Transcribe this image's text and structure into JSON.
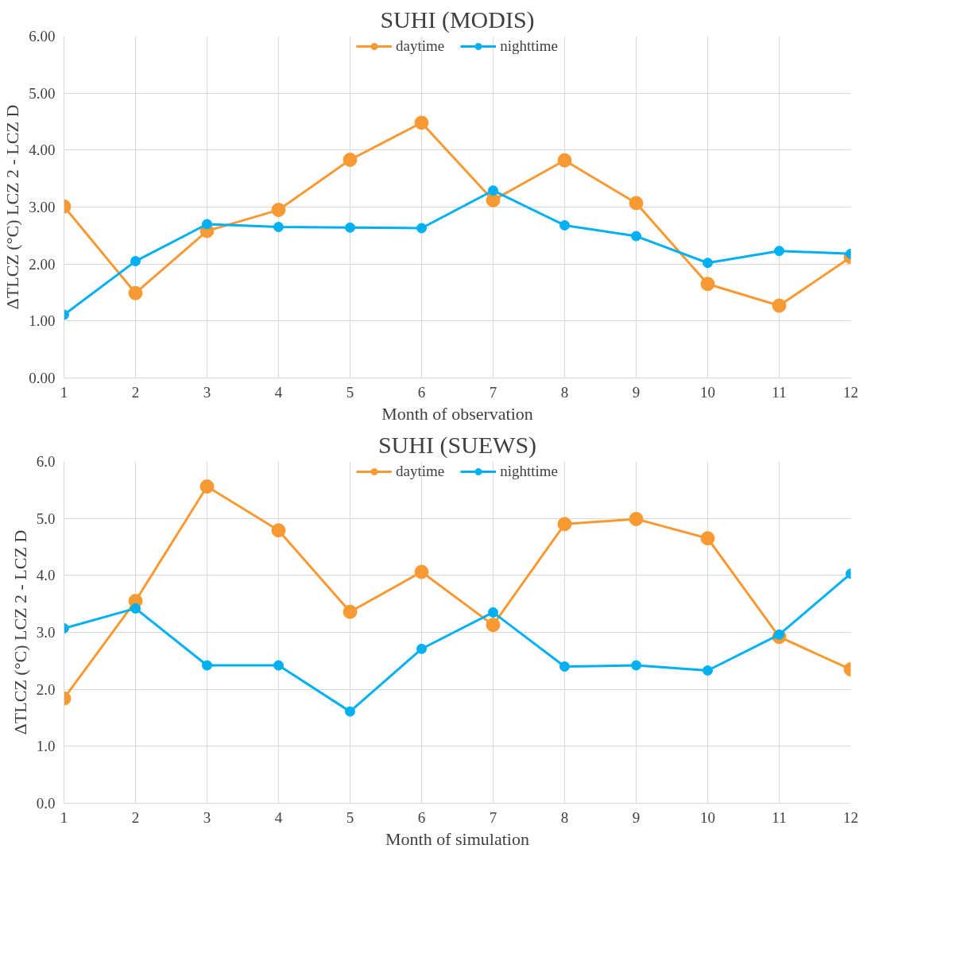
{
  "chart_data": [
    {
      "type": "line",
      "title": "SUHI (MODIS)",
      "xlabel": "Month of observation",
      "ylabel": "ΔTLCZ (°C) LCZ 2 - LCZ D",
      "x": [
        1,
        2,
        3,
        4,
        5,
        6,
        7,
        8,
        9,
        10,
        11,
        12
      ],
      "xlim": [
        1,
        12
      ],
      "xticks": [
        1,
        2,
        3,
        4,
        5,
        6,
        7,
        8,
        9,
        10,
        11,
        12
      ],
      "ylim": [
        0,
        6
      ],
      "yticks": [
        {
          "value": 0,
          "label": "0.00"
        },
        {
          "value": 1,
          "label": "1.00"
        },
        {
          "value": 2,
          "label": "2.00"
        },
        {
          "value": 3,
          "label": "3.00"
        },
        {
          "value": 4,
          "label": "4.00"
        },
        {
          "value": 5,
          "label": "5.00"
        },
        {
          "value": 6,
          "label": "6.00"
        }
      ],
      "grid": true,
      "legend": "top",
      "marker": "circle",
      "line_style": "solid",
      "series": [
        {
          "name": "daytime",
          "color": "#f79a33",
          "values": [
            3.01,
            1.49,
            2.58,
            2.95,
            3.83,
            4.48,
            3.12,
            3.82,
            3.07,
            1.65,
            1.27,
            2.12
          ]
        },
        {
          "name": "nighttime",
          "color": "#00b0f0",
          "values": [
            1.11,
            2.05,
            2.7,
            2.65,
            2.64,
            2.63,
            3.29,
            2.68,
            2.49,
            2.02,
            2.23,
            2.18
          ]
        }
      ]
    },
    {
      "type": "line",
      "title": "SUHI (SUEWS)",
      "xlabel": "Month of simulation",
      "ylabel": "ΔTLCZ (°C) LCZ 2 - LCZ D",
      "x": [
        1,
        2,
        3,
        4,
        5,
        6,
        7,
        8,
        9,
        10,
        11,
        12
      ],
      "xlim": [
        1,
        12
      ],
      "xticks": [
        1,
        2,
        3,
        4,
        5,
        6,
        7,
        8,
        9,
        10,
        11,
        12
      ],
      "ylim": [
        0,
        6
      ],
      "yticks": [
        {
          "value": 0,
          "label": "0.0"
        },
        {
          "value": 1,
          "label": "1.0"
        },
        {
          "value": 2,
          "label": "2.0"
        },
        {
          "value": 3,
          "label": "3.0"
        },
        {
          "value": 4,
          "label": "4.0"
        },
        {
          "value": 5,
          "label": "5.0"
        },
        {
          "value": 6,
          "label": "6.0"
        }
      ],
      "grid": true,
      "legend": "top",
      "marker": "circle",
      "line_style": "solid",
      "series": [
        {
          "name": "daytime",
          "color": "#f79a33",
          "values": [
            1.84,
            3.55,
            5.56,
            4.79,
            3.36,
            4.06,
            3.13,
            4.9,
            4.99,
            4.65,
            2.92,
            2.35
          ]
        },
        {
          "name": "nighttime",
          "color": "#00b0f0",
          "values": [
            3.07,
            3.42,
            2.42,
            2.42,
            1.61,
            2.71,
            3.35,
            2.4,
            2.42,
            2.33,
            2.96,
            4.03
          ]
        }
      ]
    }
  ]
}
